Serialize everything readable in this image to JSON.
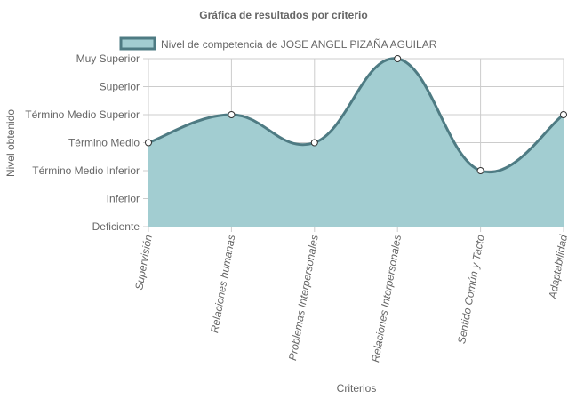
{
  "chart_data": {
    "type": "area",
    "title": "Gráfica de resultados por criterio",
    "xlabel": "Criterios",
    "ylabel": "Nivel obtenido",
    "y_levels": [
      "Deficiente",
      "Inferior",
      "Término Medio Inferior",
      "Término Medio",
      "Término Medio Superior",
      "Superior",
      "Muy Superior"
    ],
    "categories": [
      "Supervisión",
      "Relaciones humanas",
      "Problemas Interpersonales",
      "Relaciones Interpersonales",
      "Sentido Común y Tacto",
      "Adaptabilidad"
    ],
    "series": [
      {
        "name": "Nivel de competencia de JOSE ANGEL PIZAÑA AGUILAR",
        "values": [
          "Término Medio",
          "Término Medio Superior",
          "Término Medio",
          "Muy Superior",
          "Término Medio Inferior",
          "Término Medio Superior"
        ]
      }
    ],
    "colors": {
      "fill": "#a2cdd1",
      "line": "#4e7b83",
      "grid": "#cccccc",
      "text": "#666666"
    },
    "grid": true,
    "legend_position": "top"
  }
}
